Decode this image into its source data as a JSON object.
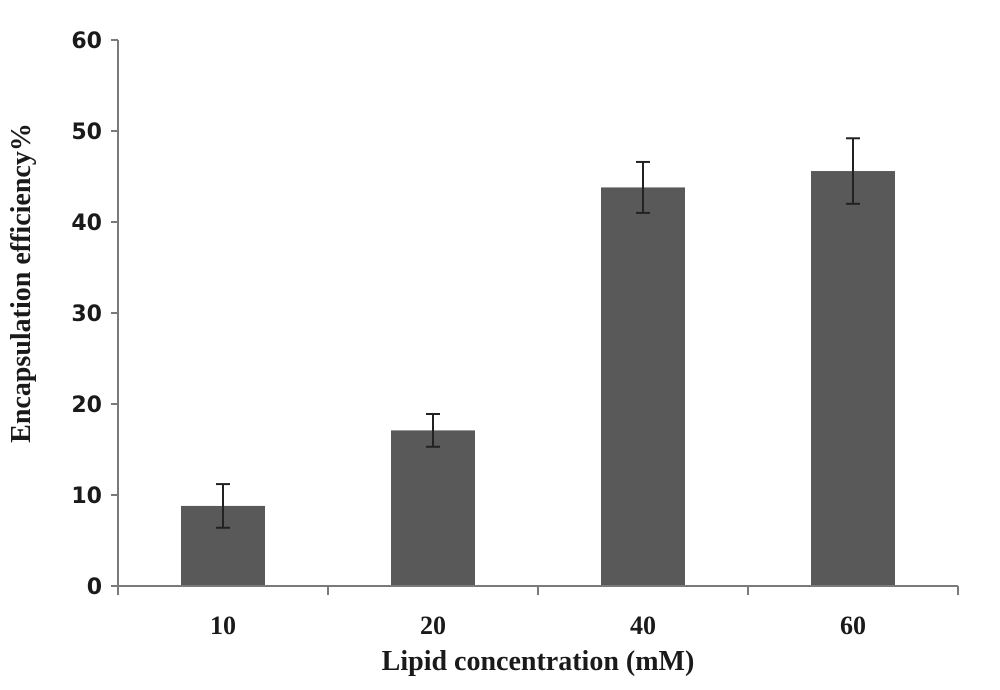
{
  "chart_data": {
    "type": "bar",
    "categories": [
      "10",
      "20",
      "40",
      "60"
    ],
    "values": [
      8.8,
      17.1,
      43.8,
      45.6
    ],
    "errors": [
      2.4,
      1.8,
      2.8,
      3.6
    ],
    "title": "",
    "xlabel": "Lipid concentration (mM)",
    "ylabel": "Encapsulation efficiency%",
    "ylim": [
      0,
      60
    ],
    "yticks": [
      "0",
      "10",
      "20",
      "30",
      "40",
      "50",
      "60"
    ],
    "grid": false,
    "legend": "none",
    "bar_color": "#595959"
  }
}
